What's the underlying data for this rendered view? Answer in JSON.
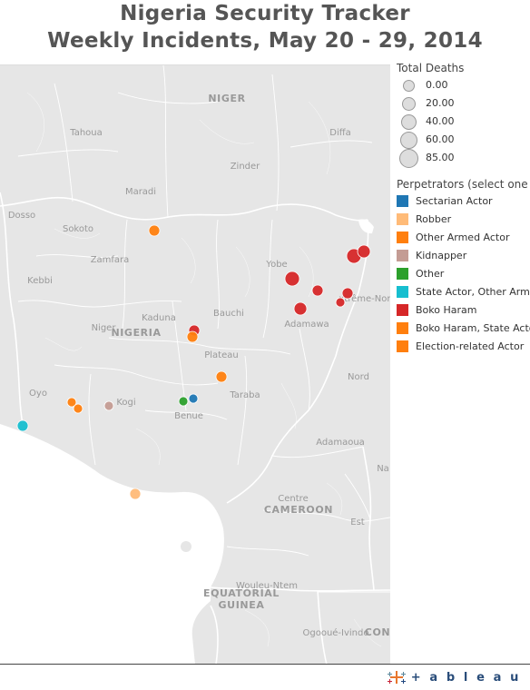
{
  "title": {
    "line1": "Nigeria Security Tracker",
    "line2": "Weekly Incidents, May 20 - 29, 2014"
  },
  "legend_size": {
    "title": "Total Deaths",
    "items": [
      "0.00",
      "20.00",
      "40.00",
      "60.00",
      "85.00"
    ]
  },
  "legend_perp": {
    "title": "Perpetrators (select one ...",
    "items": [
      {
        "label": "Sectarian Actor",
        "color": "#1f77b4"
      },
      {
        "label": "Robber",
        "color": "#ffbb78"
      },
      {
        "label": "Other Armed Actor",
        "color": "#ff7f0e"
      },
      {
        "label": "Kidnapper",
        "color": "#c49c94"
      },
      {
        "label": "Other",
        "color": "#2ca02c"
      },
      {
        "label": "State Actor, Other Arme..",
        "color": "#17becf"
      },
      {
        "label": "Boko Haram",
        "color": "#d62728"
      },
      {
        "label": "Boko Haram, State Actor",
        "color": "#ff7f0e"
      },
      {
        "label": "Election-related Actor",
        "color": "#ff7f0e"
      }
    ]
  },
  "map_labels": {
    "niger": "NIGER",
    "nigeria": "NIGERIA",
    "cameroon": "CAMEROON",
    "equatorial_guinea_1": "EQUATORIAL",
    "equatorial_guinea_2": "GUINEA",
    "con": "CON",
    "tahoua": "Tahoua",
    "diffa": "Diffa",
    "zinder": "Zinder",
    "maradi": "Maradi",
    "dosso": "Dosso",
    "sokoto": "Sokoto",
    "zamfara": "Zamfara",
    "kebbi": "Kebbi",
    "niger_state": "Niger",
    "kaduna": "Kaduna",
    "bauchi": "Bauchi",
    "yobe": "Yobe",
    "plateau": "Plateau",
    "adamawa": "Adamawa",
    "taraba": "Taraba",
    "oyo": "Oyo",
    "kogi": "Kogi",
    "benue": "Benue",
    "nord": "Nord",
    "adamaoua": "Adamaoua",
    "centre": "Centre",
    "est": "Est",
    "extreme_nord": "xtrême-Nord",
    "na": "Na",
    "wouleu_ntem": "Wouleu-Ntem",
    "ogooue_ivindo": "Ogooué-Ivindo"
  },
  "incidents": [
    {
      "perpetrator": "Other Armed Actor",
      "deaths": 2,
      "color": "#ff7f0e"
    },
    {
      "perpetrator": "Boko Haram",
      "deaths": 85,
      "color": "#d62728"
    },
    {
      "perpetrator": "Boko Haram",
      "deaths": 30,
      "color": "#d62728"
    },
    {
      "perpetrator": "Boko Haram",
      "deaths": 45,
      "color": "#d62728"
    },
    {
      "perpetrator": "Boko Haram",
      "deaths": 15,
      "color": "#d62728"
    },
    {
      "perpetrator": "Boko Haram",
      "deaths": 15,
      "color": "#d62728"
    },
    {
      "perpetrator": "Boko Haram",
      "deaths": 5,
      "color": "#d62728"
    },
    {
      "perpetrator": "Boko Haram",
      "deaths": 45,
      "color": "#d62728"
    },
    {
      "perpetrator": "Boko Haram",
      "deaths": 15,
      "color": "#d62728"
    },
    {
      "perpetrator": "Other Armed Actor",
      "deaths": 5,
      "color": "#ff7f0e"
    },
    {
      "perpetrator": "Other Armed Actor",
      "deaths": 5,
      "color": "#ff7f0e"
    },
    {
      "perpetrator": "Other Armed Actor",
      "deaths": 2,
      "color": "#ff7f0e"
    },
    {
      "perpetrator": "Other Armed Actor",
      "deaths": 2,
      "color": "#ff7f0e"
    },
    {
      "perpetrator": "Kidnapper",
      "deaths": 2,
      "color": "#c49c94"
    },
    {
      "perpetrator": "Other",
      "deaths": 2,
      "color": "#2ca02c"
    },
    {
      "perpetrator": "Sectarian Actor",
      "deaths": 2,
      "color": "#1f77b4"
    },
    {
      "perpetrator": "State Actor, Other Arme..",
      "deaths": 5,
      "color": "#17becf"
    },
    {
      "perpetrator": "Robber",
      "deaths": 5,
      "color": "#ffbb78"
    }
  ],
  "logo": {
    "text": "+ a b l e a u"
  }
}
